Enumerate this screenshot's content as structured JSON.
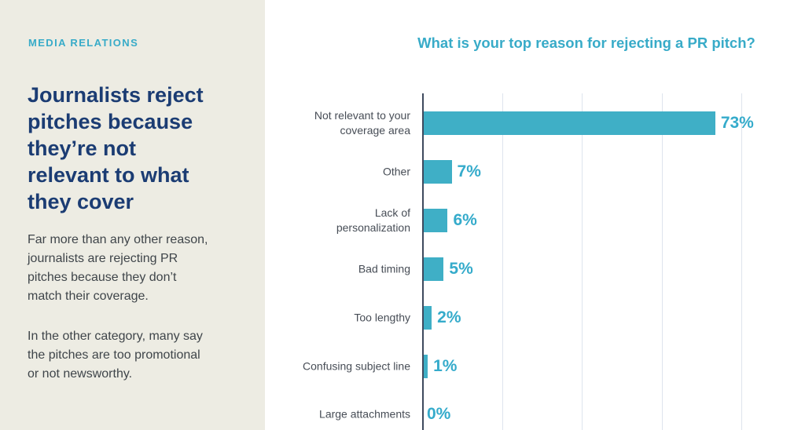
{
  "panel": {
    "eyebrow": "MEDIA RELATIONS",
    "heading": "Journalists reject\npitches because\nthey’re not\nrelevant to what\nthey cover",
    "paragraphs": [
      "Far more than any other reason,\njournalists are rejecting PR\npitches because they don’t\nmatch their coverage.",
      "In the other category, many say\nthe pitches are too promotional\nor not newsworthy."
    ]
  },
  "chart_data": {
    "type": "bar",
    "orientation": "horizontal",
    "title": "What is your top reason for rejecting a PR pitch?",
    "categories": [
      "Not relevant to your\ncoverage area",
      "Other",
      "Lack of\npersonalization",
      "Bad timing",
      "Too lengthy",
      "Confusing subject line",
      "Large attachments"
    ],
    "values": [
      73,
      7,
      6,
      5,
      2,
      1,
      0
    ],
    "value_labels": [
      "73%",
      "7%",
      "6%",
      "5%",
      "2%",
      "1%",
      "0%"
    ],
    "unit": "%",
    "xlim": [
      0,
      100
    ],
    "gridline_interval": 20,
    "grid": true,
    "legend": "none"
  },
  "colors": {
    "panel_background": "#edece3",
    "accent_teal": "#38abc8",
    "bar_teal": "#3fafc6",
    "value_label_teal": "#35abcb",
    "heading_navy": "#1b3c73",
    "body_text": "#3f454a",
    "category_label": "#474d56",
    "axis": "#3e4a5e",
    "gridline": "#dee4ed"
  }
}
